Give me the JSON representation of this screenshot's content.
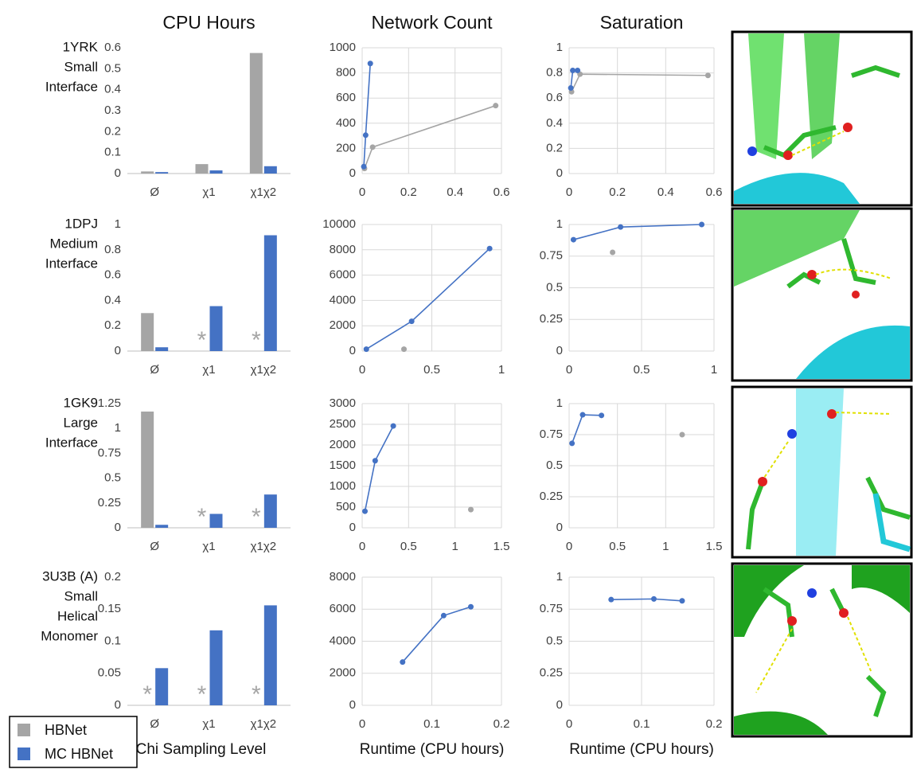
{
  "legend": [
    {
      "name": "HBNet",
      "color": "#a5a5a5"
    },
    {
      "name": "MC HBNet",
      "color": "#4472c4"
    }
  ],
  "chart_data": [
    {
      "type": "bar",
      "title": "CPU Hours",
      "row_label": [
        "1YRK",
        "Small",
        "Interface"
      ],
      "categories": [
        "Ø",
        "χ1",
        "χ1χ2"
      ],
      "series": [
        {
          "color": "#a5a5a5",
          "values": [
            0.01,
            0.045,
            0.575
          ]
        },
        {
          "color": "#4472c4",
          "values": [
            0.007,
            0.015,
            0.035
          ]
        }
      ],
      "ylim": [
        0,
        0.6
      ],
      "yticks": [
        0,
        0.1,
        0.2,
        0.3,
        0.4,
        0.5,
        0.6
      ]
    },
    {
      "type": "line",
      "title": "Network Count",
      "grid": true,
      "series": [
        {
          "color": "#a5a5a5",
          "x": [
            0.01,
            0.045,
            0.575
          ],
          "values": [
            40,
            210,
            540
          ]
        },
        {
          "color": "#4472c4",
          "x": [
            0.007,
            0.015,
            0.035
          ],
          "values": [
            55,
            305,
            875
          ]
        }
      ],
      "xlim": [
        0,
        0.6
      ],
      "xticks": [
        0,
        0.2,
        0.4,
        0.6
      ],
      "ylim": [
        0,
        1000
      ],
      "yticks": [
        0,
        200,
        400,
        600,
        800,
        1000
      ]
    },
    {
      "type": "line",
      "title": "Saturation",
      "grid": true,
      "series": [
        {
          "color": "#a5a5a5",
          "x": [
            0.01,
            0.045,
            0.575
          ],
          "values": [
            0.65,
            0.79,
            0.78
          ]
        },
        {
          "color": "#4472c4",
          "x": [
            0.007,
            0.015,
            0.035
          ],
          "values": [
            0.68,
            0.82,
            0.82
          ]
        }
      ],
      "xlim": [
        0,
        0.6
      ],
      "xticks": [
        0,
        0.2,
        0.4,
        0.6
      ],
      "ylim": [
        0,
        1
      ],
      "yticks": [
        0,
        0.2,
        0.4,
        0.6,
        0.8,
        1
      ]
    },
    {
      "type": "bar",
      "row_label": [
        "1DPJ",
        "Medium",
        "Interface"
      ],
      "categories": [
        "Ø",
        "χ1",
        "χ1χ2"
      ],
      "missing_label": "*",
      "series": [
        {
          "color": "#a5a5a5",
          "values": [
            0.3,
            null,
            null
          ]
        },
        {
          "color": "#4472c4",
          "values": [
            0.03,
            0.355,
            0.915
          ]
        }
      ],
      "ylim": [
        0,
        1
      ],
      "yticks": [
        0,
        0.2,
        0.4,
        0.6,
        0.8,
        1
      ]
    },
    {
      "type": "line",
      "grid": true,
      "series": [
        {
          "color": "#a5a5a5",
          "x": [
            0.3
          ],
          "values": [
            150
          ]
        },
        {
          "color": "#4472c4",
          "x": [
            0.03,
            0.355,
            0.915
          ],
          "values": [
            150,
            2350,
            8100
          ]
        }
      ],
      "xlim": [
        0,
        1
      ],
      "xticks": [
        0,
        0.5,
        1
      ],
      "ylim": [
        0,
        10000
      ],
      "yticks": [
        0,
        2000,
        4000,
        6000,
        8000,
        10000
      ]
    },
    {
      "type": "line",
      "grid": true,
      "series": [
        {
          "color": "#a5a5a5",
          "x": [
            0.3
          ],
          "values": [
            0.78
          ]
        },
        {
          "color": "#4472c4",
          "x": [
            0.03,
            0.355,
            0.915
          ],
          "values": [
            0.88,
            0.98,
            1.0
          ]
        }
      ],
      "xlim": [
        0,
        1
      ],
      "xticks": [
        0,
        0.5,
        1
      ],
      "ylim": [
        0,
        1
      ],
      "yticks": [
        0,
        0.25,
        0.5,
        0.75,
        1
      ]
    },
    {
      "type": "bar",
      "row_label": [
        "1GK9",
        "Large",
        "Interface"
      ],
      "categories": [
        "Ø",
        "χ1",
        "χ1χ2"
      ],
      "missing_label": "*",
      "series": [
        {
          "color": "#a5a5a5",
          "values": [
            1.17,
            null,
            null
          ]
        },
        {
          "color": "#4472c4",
          "values": [
            0.03,
            0.14,
            0.335
          ]
        }
      ],
      "ylim": [
        0,
        1.25
      ],
      "yticks": [
        0,
        0.25,
        0.5,
        0.75,
        1,
        1.25
      ]
    },
    {
      "type": "line",
      "grid": true,
      "series": [
        {
          "color": "#a5a5a5",
          "x": [
            1.17
          ],
          "values": [
            440
          ]
        },
        {
          "color": "#4472c4",
          "x": [
            0.03,
            0.14,
            0.335
          ],
          "values": [
            400,
            1620,
            2460
          ]
        }
      ],
      "xlim": [
        0,
        1.5
      ],
      "xticks": [
        0,
        0.5,
        1,
        1.5
      ],
      "ylim": [
        0,
        3000
      ],
      "yticks": [
        0,
        500,
        1000,
        1500,
        2000,
        2500,
        3000
      ]
    },
    {
      "type": "line",
      "grid": true,
      "series": [
        {
          "color": "#a5a5a5",
          "x": [
            1.17
          ],
          "values": [
            0.75
          ]
        },
        {
          "color": "#4472c4",
          "x": [
            0.03,
            0.14,
            0.335
          ],
          "values": [
            0.68,
            0.91,
            0.905
          ]
        }
      ],
      "xlim": [
        0,
        1.5
      ],
      "xticks": [
        0,
        0.5,
        1,
        1.5
      ],
      "ylim": [
        0,
        1
      ],
      "yticks": [
        0,
        0.25,
        0.5,
        0.75,
        1
      ]
    },
    {
      "type": "bar",
      "row_label": [
        "3U3B (A)",
        "Small",
        "Helical",
        "Monomer"
      ],
      "categories": [
        "Ø",
        "χ1",
        "χ1χ2"
      ],
      "missing_label": "*",
      "xlabel": "Chi  Sampling Level",
      "series": [
        {
          "color": "#a5a5a5",
          "values": [
            null,
            null,
            null
          ]
        },
        {
          "color": "#4472c4",
          "values": [
            0.058,
            0.117,
            0.156
          ]
        }
      ],
      "ylim": [
        0,
        0.2
      ],
      "yticks": [
        0,
        0.05,
        0.1,
        0.15,
        0.2
      ]
    },
    {
      "type": "line",
      "grid": true,
      "xlabel": "Runtime (CPU hours)",
      "series": [
        {
          "color": "#4472c4",
          "x": [
            0.058,
            0.117,
            0.156
          ],
          "values": [
            2700,
            5600,
            6150
          ]
        }
      ],
      "xlim": [
        0,
        0.2
      ],
      "xticks": [
        0,
        0.1,
        0.2
      ],
      "ylim": [
        0,
        8000
      ],
      "yticks": [
        0,
        2000,
        4000,
        6000,
        8000
      ]
    },
    {
      "type": "line",
      "grid": true,
      "xlabel": "Runtime (CPU hours)",
      "series": [
        {
          "color": "#4472c4",
          "x": [
            0.058,
            0.117,
            0.156
          ],
          "values": [
            0.825,
            0.83,
            0.815
          ]
        }
      ],
      "xlim": [
        0,
        0.2
      ],
      "xticks": [
        0,
        0.1,
        0.2
      ],
      "ylim": [
        0,
        1
      ],
      "yticks": [
        0,
        0.25,
        0.5,
        0.75,
        1
      ]
    }
  ]
}
